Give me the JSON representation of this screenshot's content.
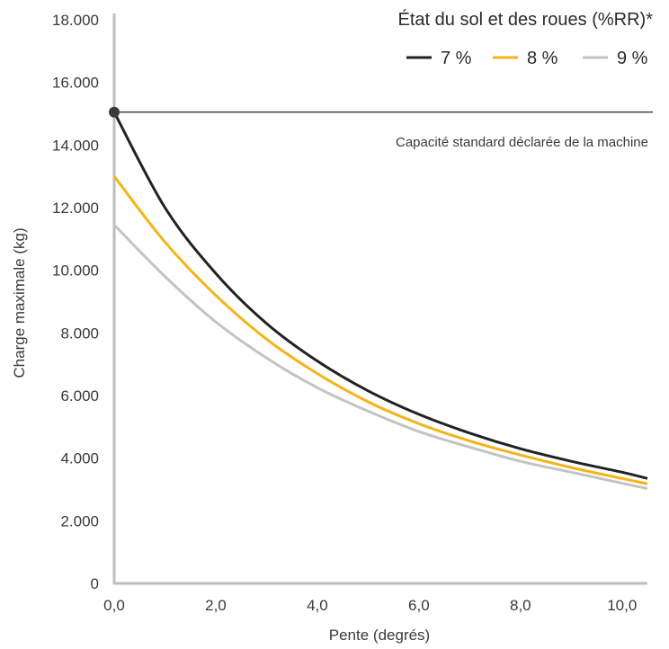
{
  "chart_data": {
    "type": "line",
    "xlabel": "Pente (degrés)",
    "ylabel": "Charge maximale (kg)",
    "xlim": [
      0,
      10.5
    ],
    "ylim": [
      0,
      18000
    ],
    "x_ticks": [
      {
        "value": 0,
        "label": "0,0"
      },
      {
        "value": 2,
        "label": "2,0"
      },
      {
        "value": 4,
        "label": "4,0"
      },
      {
        "value": 6,
        "label": "6,0"
      },
      {
        "value": 8,
        "label": "8,0"
      },
      {
        "value": 10,
        "label": "10,0"
      }
    ],
    "y_ticks": [
      {
        "value": 0,
        "label": "0"
      },
      {
        "value": 2000,
        "label": "2.000"
      },
      {
        "value": 4000,
        "label": "4.000"
      },
      {
        "value": 6000,
        "label": "6.000"
      },
      {
        "value": 8000,
        "label": "8.000"
      },
      {
        "value": 10000,
        "label": "10.000"
      },
      {
        "value": 12000,
        "label": "12.000"
      },
      {
        "value": 14000,
        "label": "14.000"
      },
      {
        "value": 16000,
        "label": "16.000"
      },
      {
        "value": 18000,
        "label": "18.000"
      }
    ],
    "grid": false,
    "legend": {
      "title": "État du sol et des roues (%RR)*",
      "placement": "top-right"
    },
    "series": [
      {
        "name": "7 %",
        "color": "#222222",
        "x": [
          0,
          1,
          2,
          3,
          4,
          5,
          6,
          7,
          8,
          9,
          10,
          10.5
        ],
        "values": [
          15050,
          12000,
          9900,
          8300,
          7100,
          6150,
          5400,
          4800,
          4300,
          3900,
          3550,
          3350
        ]
      },
      {
        "name": "8 %",
        "color": "#f5b416",
        "x": [
          0,
          1,
          2,
          3,
          4,
          5,
          6,
          7,
          8,
          9,
          10,
          10.5
        ],
        "values": [
          13000,
          10900,
          9200,
          7800,
          6700,
          5800,
          5100,
          4550,
          4100,
          3700,
          3350,
          3180
        ]
      },
      {
        "name": "9 %",
        "color": "#c3c3c3",
        "x": [
          0,
          1,
          2,
          3,
          4,
          5,
          6,
          7,
          8,
          9,
          10,
          10.5
        ],
        "values": [
          11450,
          9800,
          8350,
          7200,
          6250,
          5500,
          4850,
          4350,
          3900,
          3550,
          3200,
          3030
        ]
      }
    ],
    "reference_line": {
      "value": 15050,
      "color": "#222222",
      "label": "Capacité standard déclarée de la machine"
    }
  }
}
